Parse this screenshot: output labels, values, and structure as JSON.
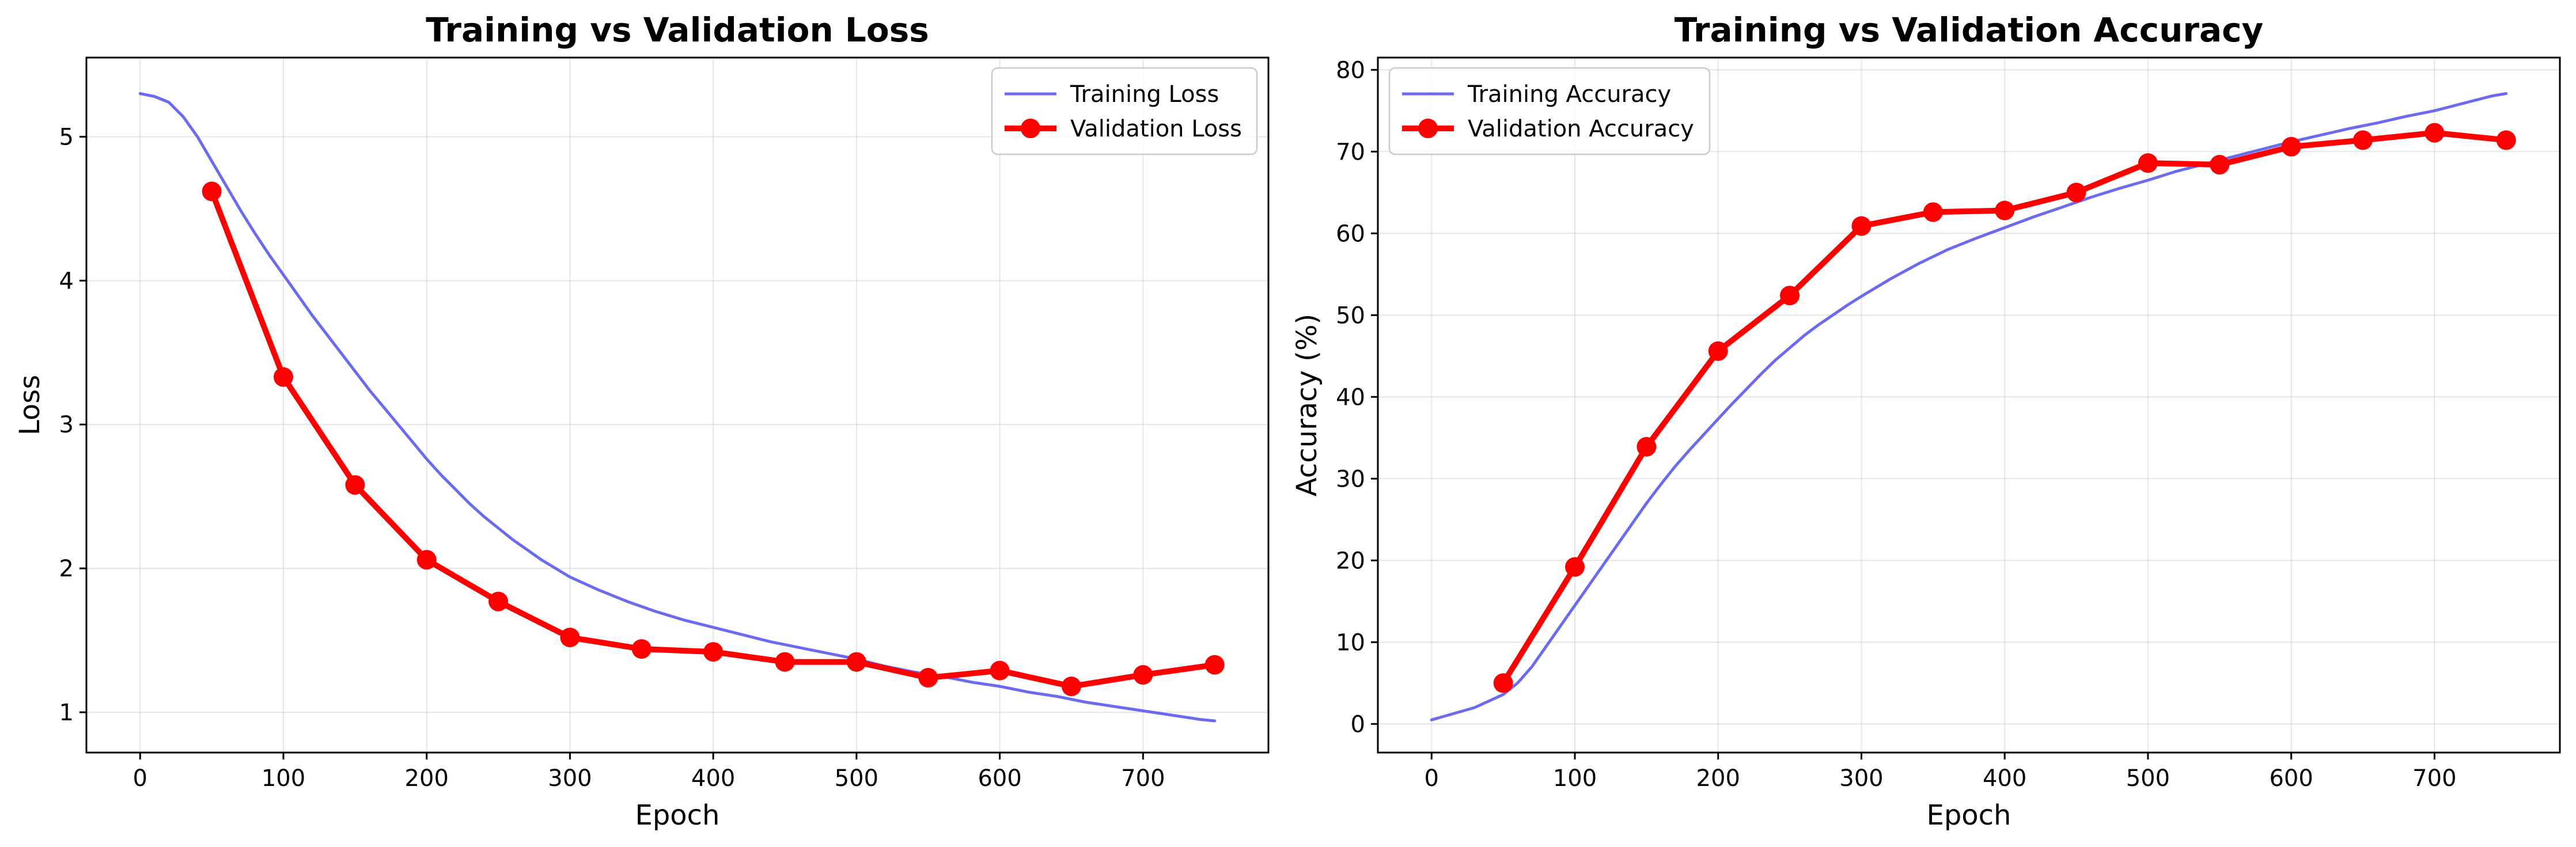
{
  "chart_data": [
    {
      "id": "loss",
      "type": "line",
      "title": "Training vs Validation Loss",
      "xlabel": "Epoch",
      "ylabel": "Loss",
      "xlim": [
        -37.5,
        787.5
      ],
      "ylim": [
        0.72,
        5.55
      ],
      "xticks": [
        0,
        100,
        200,
        300,
        400,
        500,
        600,
        700
      ],
      "yticks": [
        1,
        2,
        3,
        4,
        5
      ],
      "grid": true,
      "legend_position": "upper right",
      "series": [
        {
          "name": "Training Loss",
          "color": "#5b5bf0",
          "style": "line",
          "x": [
            0,
            10,
            20,
            30,
            40,
            50,
            60,
            70,
            80,
            90,
            100,
            110,
            120,
            130,
            140,
            150,
            160,
            170,
            180,
            190,
            200,
            210,
            220,
            230,
            240,
            250,
            260,
            270,
            280,
            290,
            300,
            320,
            340,
            360,
            380,
            400,
            420,
            440,
            460,
            480,
            500,
            520,
            540,
            560,
            580,
            600,
            620,
            640,
            660,
            680,
            700,
            720,
            740,
            750
          ],
          "y": [
            5.3,
            5.28,
            5.24,
            5.14,
            5.0,
            4.83,
            4.66,
            4.49,
            4.33,
            4.18,
            4.04,
            3.9,
            3.76,
            3.63,
            3.5,
            3.37,
            3.24,
            3.12,
            3.0,
            2.88,
            2.76,
            2.65,
            2.55,
            2.45,
            2.36,
            2.28,
            2.2,
            2.13,
            2.06,
            2.0,
            1.94,
            1.85,
            1.77,
            1.7,
            1.64,
            1.59,
            1.54,
            1.49,
            1.45,
            1.41,
            1.37,
            1.32,
            1.28,
            1.25,
            1.21,
            1.18,
            1.14,
            1.11,
            1.07,
            1.04,
            1.01,
            0.98,
            0.95,
            0.94
          ]
        },
        {
          "name": "Validation Loss",
          "color": "#ff0000",
          "style": "line-marker",
          "x": [
            50,
            100,
            150,
            200,
            250,
            300,
            350,
            400,
            450,
            500,
            550,
            600,
            650,
            700,
            750
          ],
          "y": [
            4.62,
            3.33,
            2.58,
            2.06,
            1.77,
            1.52,
            1.44,
            1.42,
            1.35,
            1.35,
            1.24,
            1.29,
            1.18,
            1.26,
            1.33
          ]
        }
      ]
    },
    {
      "id": "accuracy",
      "type": "line",
      "title": "Training vs Validation Accuracy",
      "xlabel": "Epoch",
      "ylabel": "Accuracy (%)",
      "xlim": [
        -37.5,
        787.5
      ],
      "ylim": [
        -3.5,
        81.5
      ],
      "xticks": [
        0,
        100,
        200,
        300,
        400,
        500,
        600,
        700
      ],
      "yticks": [
        0,
        10,
        20,
        30,
        40,
        50,
        60,
        70,
        80
      ],
      "grid": true,
      "legend_position": "upper left",
      "series": [
        {
          "name": "Training Accuracy",
          "color": "#5b5bf0",
          "style": "line",
          "x": [
            0,
            10,
            20,
            30,
            40,
            50,
            60,
            70,
            80,
            90,
            100,
            110,
            120,
            130,
            140,
            150,
            160,
            170,
            180,
            190,
            200,
            210,
            220,
            230,
            240,
            250,
            260,
            270,
            280,
            290,
            300,
            320,
            340,
            360,
            380,
            400,
            420,
            440,
            460,
            480,
            500,
            520,
            540,
            560,
            580,
            600,
            620,
            640,
            660,
            680,
            700,
            720,
            740,
            750
          ],
          "y": [
            0.5,
            1.0,
            1.5,
            2.0,
            2.8,
            3.6,
            5.0,
            7.0,
            9.5,
            12.0,
            14.5,
            17.0,
            19.5,
            22.0,
            24.5,
            27.0,
            29.3,
            31.5,
            33.5,
            35.4,
            37.3,
            39.2,
            41.0,
            42.8,
            44.5,
            46.0,
            47.5,
            48.8,
            50.0,
            51.2,
            52.3,
            54.4,
            56.3,
            58.0,
            59.4,
            60.7,
            62.0,
            63.2,
            64.4,
            65.5,
            66.5,
            67.6,
            68.5,
            69.4,
            70.3,
            71.2,
            72.0,
            72.8,
            73.5,
            74.3,
            75.0,
            75.9,
            76.8,
            77.1
          ]
        },
        {
          "name": "Validation Accuracy",
          "color": "#ff0000",
          "style": "line-marker",
          "x": [
            50,
            100,
            150,
            200,
            250,
            300,
            350,
            400,
            450,
            500,
            550,
            600,
            650,
            700,
            750
          ],
          "y": [
            5.0,
            19.2,
            33.9,
            45.6,
            52.4,
            60.9,
            62.6,
            62.8,
            65.0,
            68.6,
            68.4,
            70.6,
            71.4,
            72.3,
            71.4
          ]
        }
      ]
    }
  ]
}
